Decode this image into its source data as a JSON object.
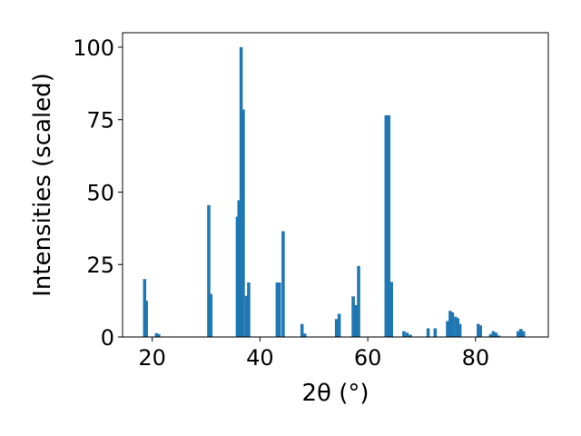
{
  "chart_data": {
    "type": "bar",
    "xlabel": "2θ (°)",
    "ylabel": "Intensities (scaled)",
    "xlim": [
      14.5,
      93.5
    ],
    "ylim": [
      0,
      105
    ],
    "xticks": [
      20,
      40,
      60,
      80
    ],
    "yticks": [
      0,
      25,
      50,
      75,
      100
    ],
    "bar_width": 0.6,
    "color": "#1f77b4",
    "grid": false,
    "x": [
      18.6,
      18.9,
      20.8,
      21.2,
      30.5,
      30.9,
      35.8,
      36.1,
      36.5,
      36.9,
      37.5,
      37.9,
      43.2,
      43.6,
      44.3,
      47.8,
      48.3,
      54.2,
      54.7,
      57.3,
      57.8,
      58.3,
      63.4,
      63.9,
      64.4,
      66.7,
      67.3,
      67.9,
      71.2,
      72.5,
      74.8,
      75.3,
      75.7,
      76.3,
      76.7,
      77.1,
      80.5,
      80.9,
      82.8,
      83.3,
      83.8,
      84.3,
      87.9,
      88.4,
      88.9
    ],
    "y": [
      20,
      12.5,
      1.3,
      1.0,
      45.5,
      14.8,
      41.5,
      47.2,
      100,
      78.5,
      14.2,
      18.8,
      18.8,
      18.8,
      36.5,
      4.5,
      1.2,
      6.2,
      8.0,
      14.0,
      11.0,
      24.5,
      76.5,
      76.5,
      19.0,
      2.0,
      1.5,
      0.8,
      3.0,
      3.0,
      5.5,
      9.0,
      8.5,
      7.0,
      6.5,
      4.5,
      4.5,
      4.0,
      1.0,
      2.0,
      1.5,
      0.5,
      2.0,
      2.8,
      2.0
    ]
  }
}
